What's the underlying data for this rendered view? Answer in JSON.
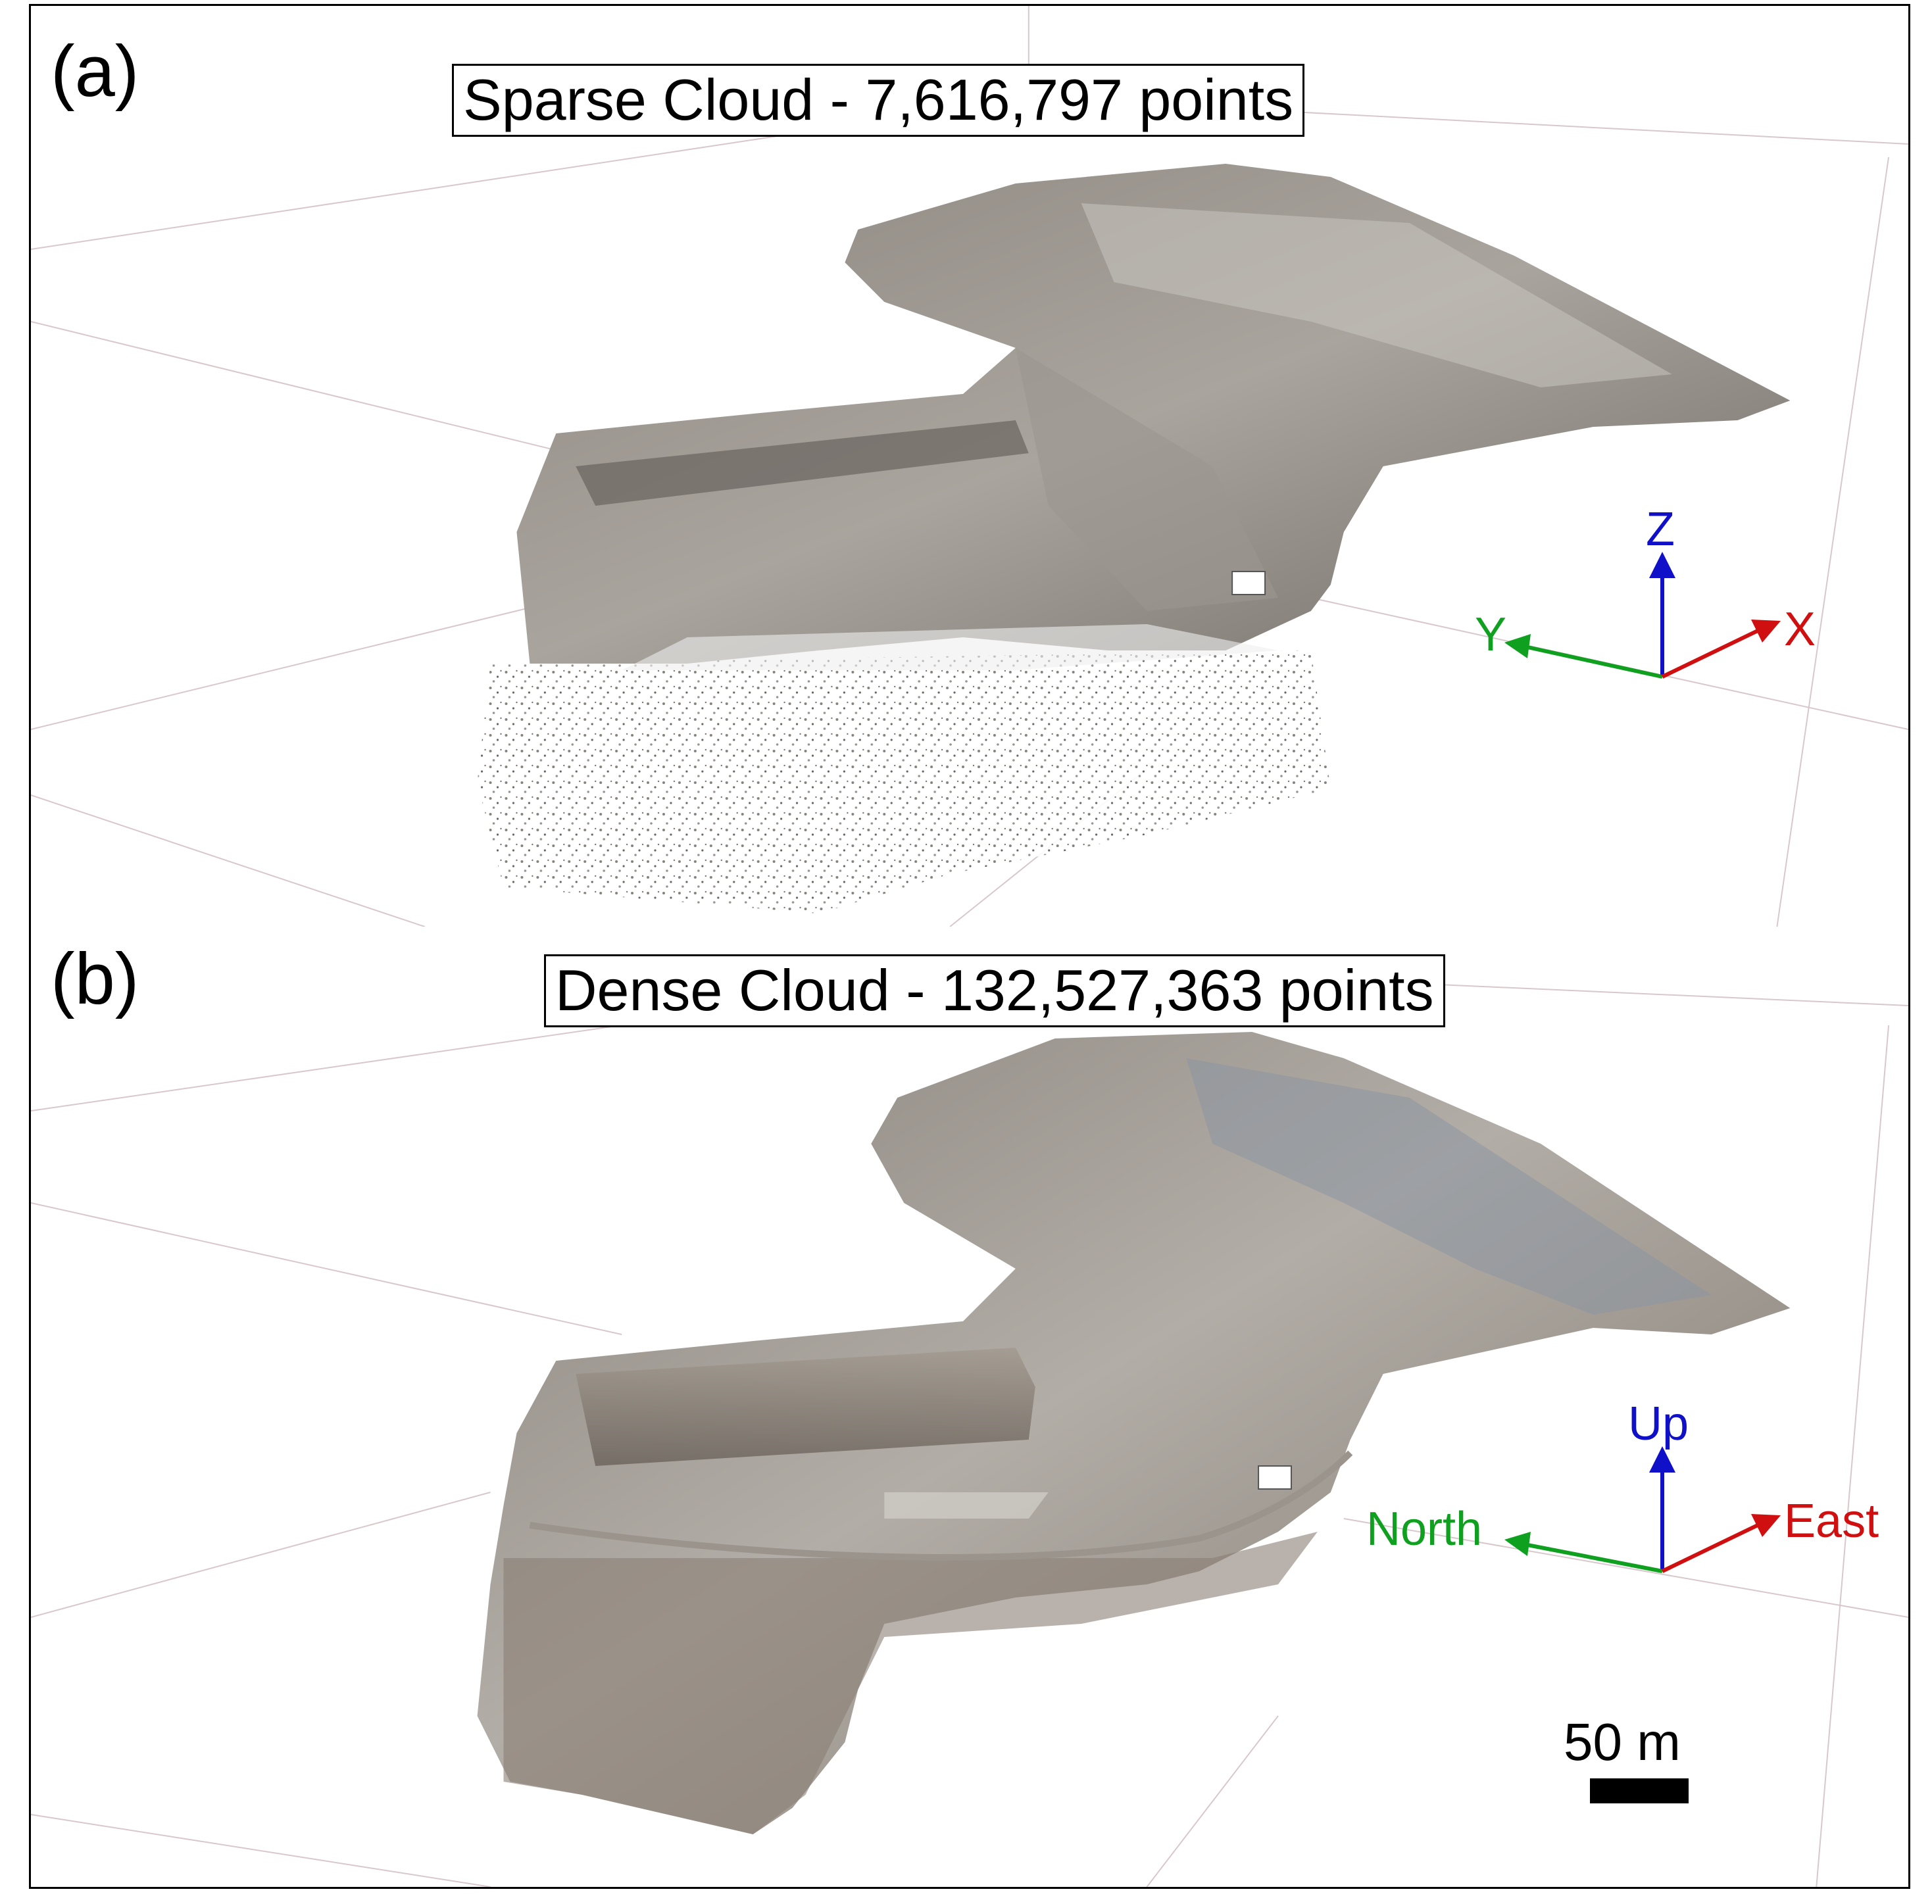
{
  "panel_a": {
    "letter": "(a)",
    "title": "Sparse Cloud - 7,616,797 points",
    "axes": {
      "z": "Z",
      "y": "Y",
      "x": "X"
    }
  },
  "panel_b": {
    "letter": "(b)",
    "title": "Dense Cloud - 132,527,363 points",
    "axes": {
      "z": "Up",
      "y": "North",
      "x": "East"
    }
  },
  "scale_bar": "50 m",
  "colors": {
    "z_axis": "#1010c8",
    "y_axis": "#10a020",
    "x_axis": "#d01010",
    "grid": "#d8c8cc",
    "terrain_light": "#b8b4ae",
    "terrain_dark": "#6f6a64"
  }
}
